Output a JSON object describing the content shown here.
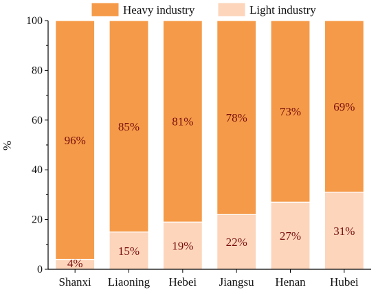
{
  "chart_data": {
    "type": "bar",
    "stacked": true,
    "title": "",
    "xlabel": "",
    "ylabel": "%",
    "ylim": [
      0,
      100
    ],
    "yticks": [
      "0",
      "20",
      "40",
      "60",
      "80",
      "100"
    ],
    "categories": [
      "Shanxi",
      "Liaoning",
      "Hebei",
      "Jiangsu",
      "Henan",
      "Hubei"
    ],
    "series": [
      {
        "name": "Light industry",
        "values": [
          4,
          15,
          19,
          22,
          27,
          31
        ],
        "labels": [
          "4%",
          "15%",
          "19%",
          "22%",
          "27%",
          "31%"
        ],
        "color": "#fcd5bb"
      },
      {
        "name": "Heavy industry",
        "values": [
          96,
          85,
          81,
          78,
          73,
          69
        ],
        "labels": [
          "96%",
          "85%",
          "81%",
          "78%",
          "73%",
          "69%"
        ],
        "color": "#f59a48"
      }
    ],
    "legend_position": "top",
    "grid": false
  }
}
